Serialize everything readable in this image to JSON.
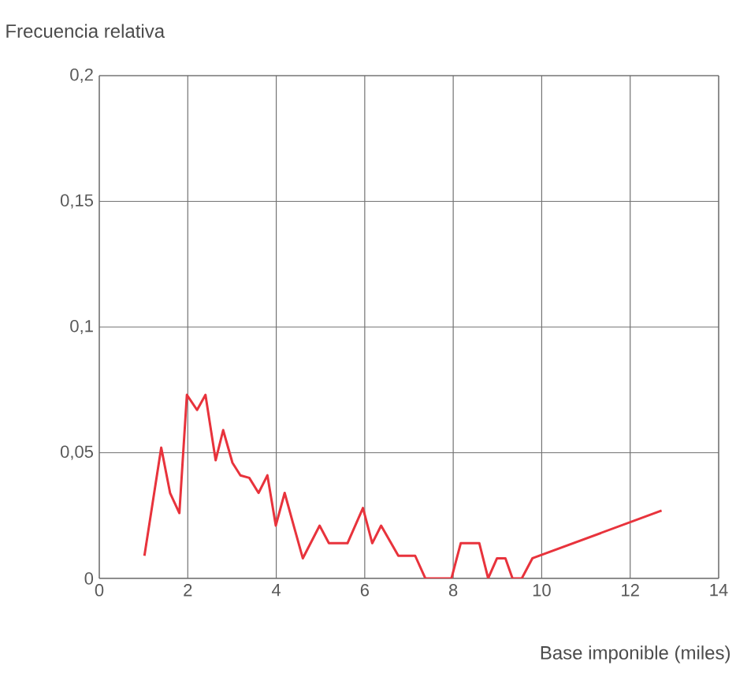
{
  "chart_data": {
    "type": "line",
    "xlabel": "Base imponible (miles)",
    "ylabel": "Frecuencia relativa",
    "series": [
      {
        "color": "#e8333c",
        "x": [
          1.02,
          1.4,
          1.6,
          1.81,
          1.98,
          2.21,
          2.4,
          2.63,
          2.8,
          3.01,
          3.19,
          3.39,
          3.6,
          3.8,
          3.99,
          4.19,
          4.41,
          4.6,
          4.98,
          5.19,
          5.61,
          5.96,
          6.17,
          6.37,
          6.76,
          7.14,
          7.37,
          7.96,
          8.17,
          8.59,
          8.79,
          8.99,
          9.18,
          9.34,
          9.55,
          9.79,
          12.71
        ],
        "values": [
          0.009,
          0.052,
          0.034,
          0.026,
          0.073,
          0.067,
          0.073,
          0.047,
          0.059,
          0.046,
          0.041,
          0.04,
          0.034,
          0.041,
          0.021,
          0.034,
          0.02,
          0.008,
          0.021,
          0.014,
          0.014,
          0.028,
          0.014,
          0.021,
          0.009,
          0.009,
          0,
          0,
          0.014,
          0.014,
          0,
          0.008,
          0.008,
          0,
          0,
          0.008,
          0.027
        ]
      }
    ],
    "xlim": [
      0,
      14
    ],
    "ylim": [
      0,
      0.2
    ],
    "xticks": [
      0,
      2,
      4,
      6,
      8,
      10,
      12,
      14
    ],
    "yticks": [
      0,
      {
        "value": 0.05,
        "label": "0,05"
      },
      {
        "value": 0.1,
        "label": "0,1"
      },
      {
        "value": 0.15,
        "label": "0,15"
      },
      {
        "value": 0.2,
        "label": "0,2"
      }
    ],
    "grid": true,
    "marker": "none",
    "line_style": "solid"
  }
}
